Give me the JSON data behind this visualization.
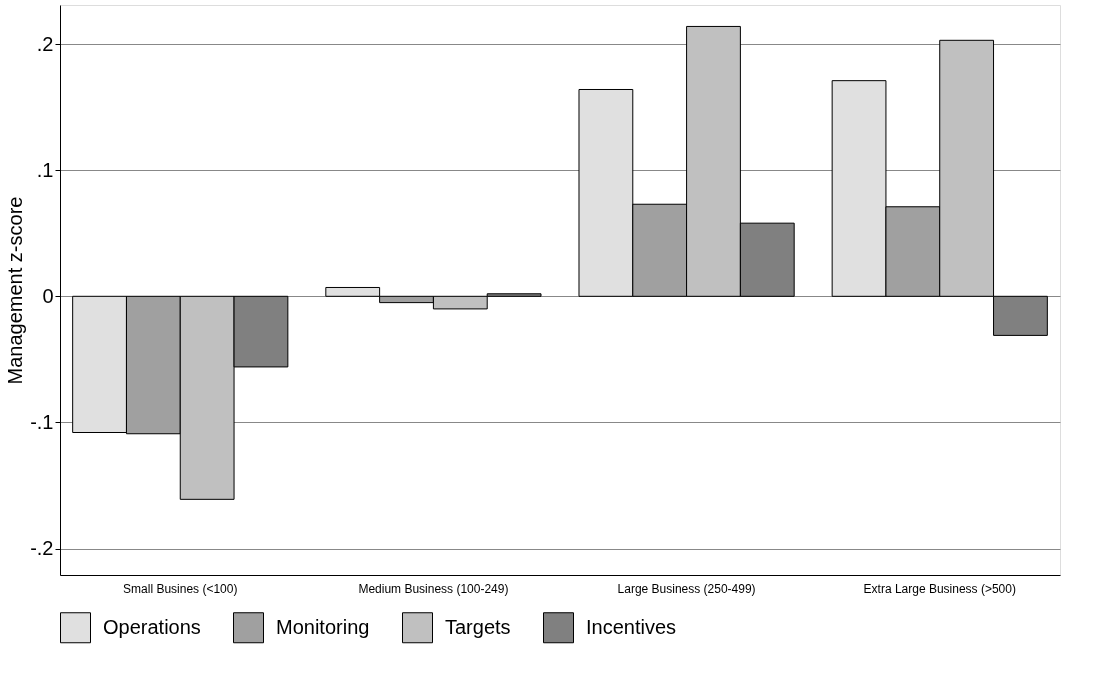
{
  "chart_data": {
    "type": "bar",
    "ylabel": "Management z-score",
    "categories": [
      "Small Busines (<100)",
      "Medium Business (100-249)",
      "Large Business (250-499)",
      "Extra Large Business (>500)"
    ],
    "series": [
      {
        "name": "Operations",
        "color": "#e0e0e0",
        "values": [
          -0.108,
          0.007,
          0.164,
          0.171
        ]
      },
      {
        "name": "Monitoring",
        "color": "#a0a0a0",
        "values": [
          -0.109,
          -0.005,
          0.073,
          0.071
        ]
      },
      {
        "name": "Targets",
        "color": "#c0c0c0",
        "values": [
          -0.161,
          -0.01,
          0.214,
          0.203
        ]
      },
      {
        "name": "Incentives",
        "color": "#808080",
        "values": [
          -0.056,
          0.002,
          0.058,
          -0.031
        ]
      }
    ],
    "ylim": [
      -0.221,
      0.231
    ],
    "yticks": [
      {
        "value": -0.2,
        "label": "-.2"
      },
      {
        "value": -0.1,
        "label": "-.1"
      },
      0,
      {
        "value": 0.1,
        "label": ".1"
      },
      {
        "value": 0.2,
        "label": ".2"
      }
    ],
    "grid": "y",
    "legend": "bottom"
  }
}
